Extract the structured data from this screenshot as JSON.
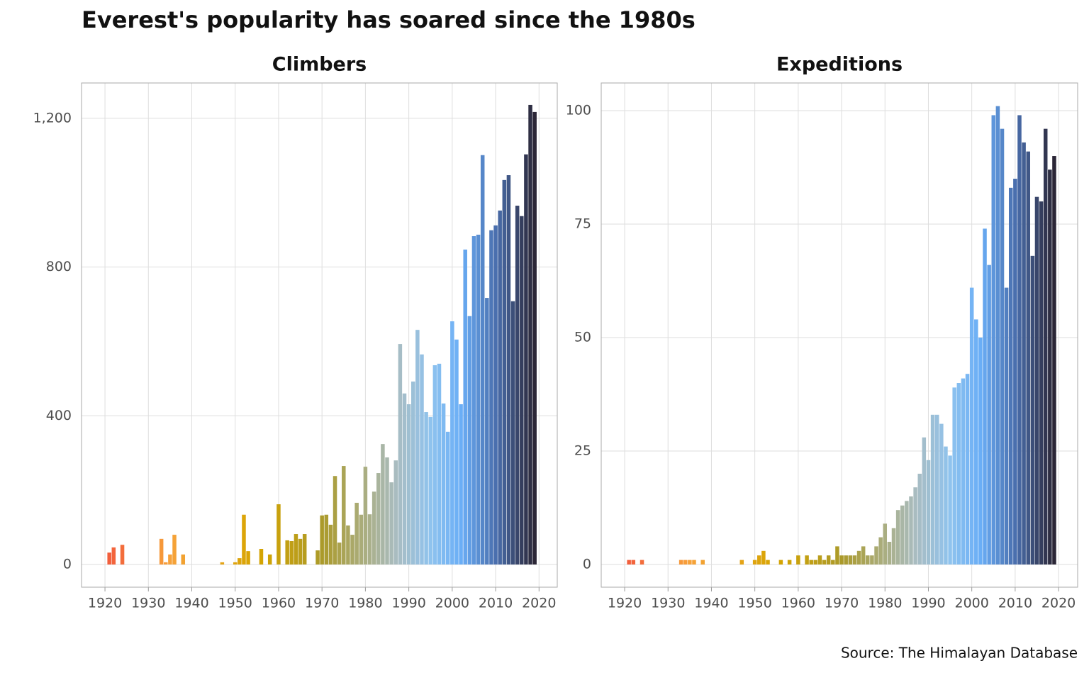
{
  "title": "Everest's popularity has soared since the 1980s",
  "source": "Source: The Himalayan Database",
  "chart_data": [
    {
      "type": "bar",
      "title": "Climbers",
      "x": [
        1921,
        1922,
        1924,
        1933,
        1934,
        1935,
        1936,
        1938,
        1947,
        1950,
        1951,
        1952,
        1953,
        1956,
        1958,
        1960,
        1962,
        1963,
        1964,
        1965,
        1966,
        1969,
        1970,
        1971,
        1972,
        1973,
        1974,
        1975,
        1976,
        1977,
        1978,
        1979,
        1980,
        1981,
        1982,
        1983,
        1984,
        1985,
        1986,
        1987,
        1988,
        1989,
        1990,
        1991,
        1992,
        1993,
        1994,
        1995,
        1996,
        1997,
        1998,
        1999,
        2000,
        2001,
        2002,
        2003,
        2004,
        2005,
        2006,
        2007,
        2008,
        2009,
        2010,
        2011,
        2012,
        2013,
        2014,
        2015,
        2016,
        2017,
        2018,
        2019
      ],
      "values": [
        32,
        46,
        53,
        69,
        6,
        27,
        80,
        27,
        6,
        6,
        17,
        134,
        36,
        42,
        27,
        162,
        65,
        63,
        82,
        69,
        82,
        38,
        132,
        134,
        107,
        238,
        59,
        265,
        105,
        80,
        166,
        134,
        263,
        135,
        196,
        246,
        324,
        288,
        221,
        280,
        593,
        460,
        431,
        492,
        631,
        565,
        410,
        397,
        536,
        540,
        433,
        357,
        654,
        605,
        431,
        847,
        668,
        883,
        887,
        1101,
        717,
        899,
        912,
        952,
        1034,
        1047,
        708,
        965,
        937,
        1103,
        1236,
        1217
      ],
      "xlim": [
        1914.6,
        2024.2
      ],
      "xticks": [
        1920,
        1930,
        1940,
        1950,
        1960,
        1970,
        1980,
        1990,
        2000,
        2010,
        2020
      ],
      "ylim": [
        -61,
        1295
      ],
      "yticks": [
        0,
        400,
        800,
        {
          "value": 1200,
          "label": "1,200"
        }
      ],
      "grid": true,
      "color_stops": [
        [
          1920,
          "#f25a3c"
        ],
        [
          1935,
          "#f7a23a"
        ],
        [
          1955,
          "#d7a500"
        ],
        [
          1970,
          "#ab9a2a"
        ],
        [
          1987,
          "#a9bcc0"
        ],
        [
          1995,
          "#8fc3ee"
        ],
        [
          2002,
          "#6aaef6"
        ],
        [
          2010,
          "#4a6fae"
        ],
        [
          2019,
          "#2b2636"
        ]
      ]
    },
    {
      "type": "bar",
      "title": "Expeditions",
      "x": [
        1921,
        1922,
        1924,
        1933,
        1934,
        1935,
        1936,
        1938,
        1947,
        1950,
        1951,
        1952,
        1953,
        1956,
        1958,
        1960,
        1962,
        1963,
        1964,
        1965,
        1966,
        1967,
        1968,
        1969,
        1970,
        1971,
        1972,
        1973,
        1974,
        1975,
        1976,
        1977,
        1978,
        1979,
        1980,
        1981,
        1982,
        1983,
        1984,
        1985,
        1986,
        1987,
        1988,
        1989,
        1990,
        1991,
        1992,
        1993,
        1994,
        1995,
        1996,
        1997,
        1998,
        1999,
        2000,
        2001,
        2002,
        2003,
        2004,
        2005,
        2006,
        2007,
        2008,
        2009,
        2010,
        2011,
        2012,
        2013,
        2014,
        2015,
        2016,
        2017,
        2018,
        2019
      ],
      "values": [
        1,
        1,
        1,
        1,
        1,
        1,
        1,
        1,
        1,
        1,
        2,
        3,
        1,
        1,
        1,
        2,
        2,
        1,
        1,
        2,
        1,
        2,
        1,
        4,
        2,
        2,
        2,
        2,
        3,
        4,
        2,
        2,
        4,
        6,
        9,
        5,
        8,
        12,
        13,
        14,
        15,
        17,
        20,
        28,
        23,
        33,
        33,
        31,
        26,
        24,
        39,
        40,
        41,
        42,
        61,
        54,
        50,
        74,
        66,
        99,
        101,
        96,
        61,
        83,
        85,
        99,
        93,
        91,
        68,
        81,
        80,
        96,
        87,
        90
      ],
      "xlim": [
        1914.6,
        2024.4
      ],
      "xticks": [
        1920,
        1930,
        1940,
        1950,
        1960,
        1970,
        1980,
        1990,
        2000,
        2010,
        2020
      ],
      "ylim": [
        -5,
        106.1
      ],
      "yticks": [
        0,
        25,
        50,
        75,
        100
      ],
      "grid": true,
      "color_stops": [
        [
          1920,
          "#f25a3c"
        ],
        [
          1935,
          "#f7a23a"
        ],
        [
          1955,
          "#d7a500"
        ],
        [
          1970,
          "#ab9a2a"
        ],
        [
          1987,
          "#a9bcc0"
        ],
        [
          1995,
          "#8fc3ee"
        ],
        [
          2002,
          "#6aaef6"
        ],
        [
          2010,
          "#4a6fae"
        ],
        [
          2019,
          "#2b2636"
        ]
      ]
    }
  ]
}
